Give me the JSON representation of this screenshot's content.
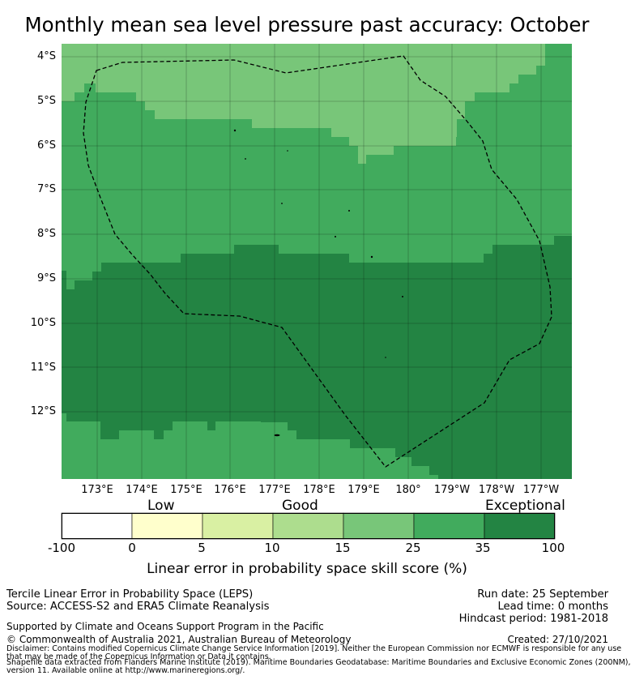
{
  "title": "Monthly mean sea level pressure past accuracy: October",
  "map": {
    "lat_labels": [
      "4°S",
      "5°S",
      "6°S",
      "7°S",
      "8°S",
      "9°S",
      "10°S",
      "11°S",
      "12°S"
    ],
    "lon_labels": [
      "173°E",
      "174°E",
      "175°E",
      "176°E",
      "177°E",
      "178°E",
      "179°E",
      "180°",
      "179°W",
      "178°W",
      "177°W"
    ]
  },
  "colorbar": {
    "category_labels": {
      "low": "Low",
      "good": "Good",
      "exceptional": "Exceptional"
    },
    "tick_labels": [
      "-100",
      "0",
      "5",
      "10",
      "15",
      "25",
      "35",
      "100"
    ],
    "colors": [
      "#ffffff",
      "#ffffcc",
      "#d9f0a3",
      "#addd8e",
      "#78c679",
      "#41ab5d",
      "#238443"
    ],
    "label": "Linear error in probability space skill score (%)"
  },
  "footer": {
    "method": "Tercile Linear Error in Probability Space (LEPS)",
    "source": "Source: ACCESS-S2 and ERA5 Climate Reanalysis",
    "run_date": "Run date: 25 September",
    "lead_time": "Lead time: 0 months",
    "hindcast": "Hindcast period: 1981-2018",
    "support": "Supported by Climate and Oceans Support Program in the Pacific",
    "copyright": "© Commonwealth of Australia 2021, Australian Bureau of Meteorology",
    "created": "Created: 27/10/2021",
    "disclaimer1": "Disclaimer: Contains modified Copernicus Climate Change Service Information [2019]. Neither the European Commission nor ECMWF is responsible for any use",
    "disclaimer2": "that may be made of the Copernicus Information or Data it contains.",
    "shapefile1": "Shapefile data extracted from Flanders Marine Institute (2019). Maritime Boundaries Geodatabase: Maritime Boundaries and Exclusive Economic Zones (200NM),",
    "shapefile2": "version 11. Available online at http://www.marineregions.org/."
  }
}
